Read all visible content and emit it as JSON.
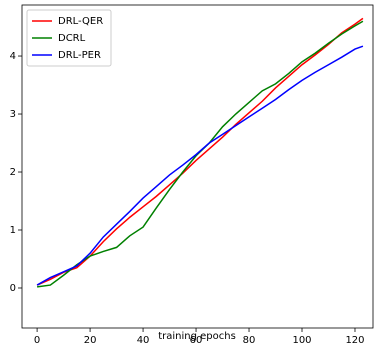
{
  "chart_data": {
    "type": "line",
    "xlabel": "training epochs",
    "x": [
      0,
      5,
      10,
      15,
      20,
      25,
      30,
      35,
      40,
      45,
      50,
      55,
      60,
      65,
      70,
      75,
      80,
      85,
      90,
      95,
      100,
      105,
      110,
      115,
      120,
      123
    ],
    "series": [
      {
        "name": "DRL-QER",
        "color": "red",
        "values": [
          0.05,
          0.15,
          0.27,
          0.35,
          0.55,
          0.8,
          1.02,
          1.22,
          1.4,
          1.58,
          1.78,
          1.98,
          2.2,
          2.4,
          2.6,
          2.82,
          3.02,
          3.22,
          3.45,
          3.65,
          3.85,
          4.02,
          4.2,
          4.4,
          4.55,
          4.65
        ]
      },
      {
        "name": "DCRL",
        "color": "green",
        "values": [
          0.02,
          0.05,
          0.22,
          0.4,
          0.55,
          0.63,
          0.7,
          0.9,
          1.05,
          1.38,
          1.7,
          2.0,
          2.28,
          2.5,
          2.78,
          3.0,
          3.2,
          3.4,
          3.52,
          3.7,
          3.9,
          4.05,
          4.22,
          4.38,
          4.52,
          4.6
        ]
      },
      {
        "name": "DRL-PER",
        "color": "blue",
        "values": [
          0.05,
          0.18,
          0.28,
          0.38,
          0.6,
          0.88,
          1.1,
          1.32,
          1.55,
          1.75,
          1.95,
          2.12,
          2.3,
          2.5,
          2.65,
          2.8,
          2.95,
          3.1,
          3.25,
          3.42,
          3.58,
          3.72,
          3.85,
          3.98,
          4.12,
          4.17
        ]
      }
    ],
    "xlim": [
      -5.7,
      126.8
    ],
    "xticks": [
      0,
      20,
      40,
      60,
      80,
      100,
      120
    ],
    "ylim": [
      -0.69,
      4.88
    ],
    "yticks": [
      0,
      1,
      2,
      3,
      4
    ],
    "legend": "upper left"
  }
}
